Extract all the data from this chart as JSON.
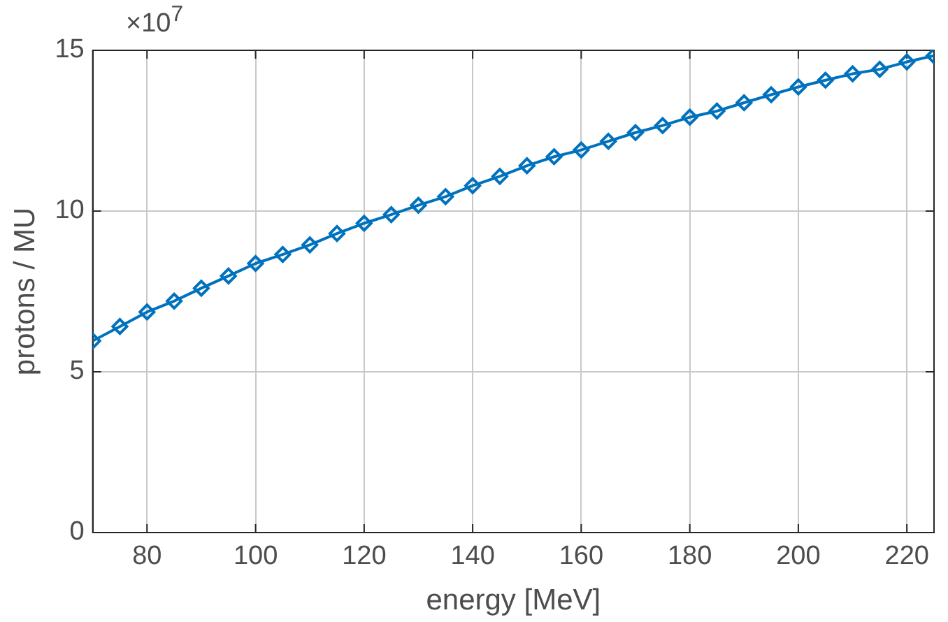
{
  "chart_data": {
    "type": "line",
    "xlabel": "energy [MeV]",
    "ylabel": "protons / MU",
    "annotations": [
      "×10$^{7}$"
    ],
    "x": [
      70,
      75,
      80,
      85,
      90,
      95,
      100,
      105,
      110,
      115,
      120,
      125,
      130,
      135,
      140,
      145,
      150,
      155,
      160,
      165,
      170,
      175,
      180,
      185,
      190,
      195,
      200,
      205,
      210,
      215,
      220,
      225
    ],
    "series": [
      {
        "color": "#0072bd",
        "values": [
          5.96,
          6.41,
          6.86,
          7.2,
          7.6,
          7.98,
          8.37,
          8.65,
          8.95,
          9.3,
          9.62,
          9.89,
          10.18,
          10.45,
          10.79,
          11.08,
          11.41,
          11.69,
          11.9,
          12.17,
          12.44,
          12.66,
          12.92,
          13.11,
          13.37,
          13.62,
          13.86,
          14.07,
          14.27,
          14.41,
          14.64,
          14.83
        ]
      }
    ],
    "xlim": [
      70,
      225
    ],
    "xticks": [
      80,
      100,
      120,
      140,
      160,
      180,
      200,
      220
    ],
    "ylim": [
      0,
      15
    ],
    "yticks": [
      0,
      5,
      10,
      15
    ],
    "grid": true,
    "legend": false,
    "marker": "diamond",
    "line_style": "solid"
  }
}
